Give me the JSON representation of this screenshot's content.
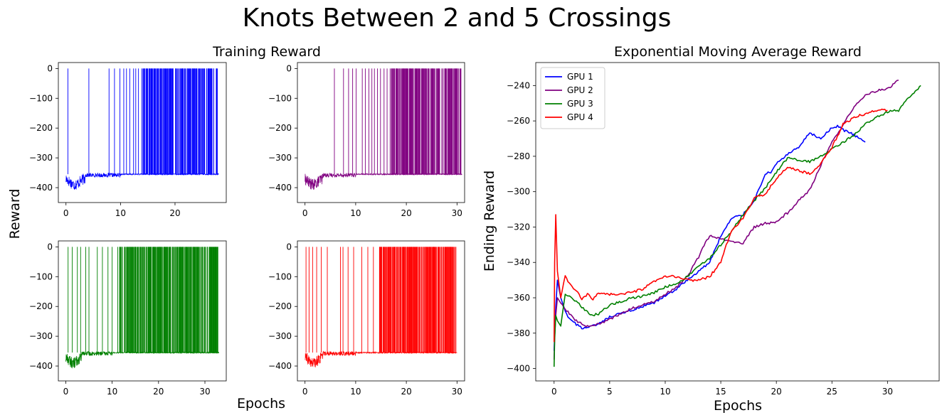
{
  "suptitle": "Knots Between 2 and 5 Crossings",
  "left_group": {
    "title": "Training Reward",
    "ylabel": "Reward",
    "xlabel": "Epochs"
  },
  "chart_data": [
    {
      "type": "line",
      "panel": "training-reward-gpu1",
      "color": "#0000ff",
      "xlim": [
        -1.4,
        29.4
      ],
      "ylim": [
        -450,
        20
      ],
      "xticks": [
        0,
        10,
        20
      ],
      "yticks": [
        0,
        -100,
        -200,
        -300,
        -400
      ],
      "x_max": 28,
      "baseline": -355,
      "spikes_x": [
        0.35,
        4.2,
        7.9,
        8.9,
        9.9,
        10.6,
        11.1,
        11.7,
        12.4,
        12.8,
        13.3,
        13.9,
        14.4,
        14.8,
        15.3,
        15.7,
        16.1,
        16.6,
        17.0,
        17.4,
        17.9,
        18.3,
        18.8,
        19.2,
        19.6,
        20.1,
        20.5,
        21.0,
        21.4,
        21.8,
        22.3,
        22.7,
        23.2,
        23.6,
        24.0,
        24.5,
        24.9,
        25.4,
        25.8,
        26.2,
        26.7,
        27.1,
        27.6
      ],
      "dense_from": 14.0
    },
    {
      "type": "line",
      "panel": "training-reward-gpu2",
      "color": "#800080",
      "xlim": [
        -1.5,
        31.5
      ],
      "ylim": [
        -450,
        20
      ],
      "xticks": [
        0,
        10,
        20,
        30
      ],
      "yticks": [
        0,
        -100,
        -200,
        -300,
        -400
      ],
      "x_max": 31,
      "baseline": -355,
      "spikes_x": [
        5.8,
        7.6,
        8.6,
        9.4,
        10.1,
        11.3,
        11.9,
        12.6,
        13.2,
        13.7,
        14.3,
        14.9,
        15.6,
        16.2,
        16.8,
        17.5,
        18.1,
        18.7,
        19.4,
        20.0,
        20.7,
        21.3,
        21.9,
        22.5,
        23.2,
        23.8,
        24.4,
        25.1,
        25.7,
        26.3,
        27.0,
        27.6,
        28.2,
        28.9,
        29.5,
        30.1,
        30.7
      ],
      "dense_from": 17.0
    },
    {
      "type": "line",
      "panel": "training-reward-gpu3",
      "color": "#008000",
      "xlim": [
        -1.6,
        34.6
      ],
      "ylim": [
        -450,
        20
      ],
      "xticks": [
        0,
        10,
        20,
        30
      ],
      "yticks": [
        0,
        -100,
        -200,
        -300,
        -400
      ],
      "x_max": 33,
      "baseline": -355,
      "spikes_x": [
        0.5,
        1.4,
        2.5,
        3.2,
        4.3,
        5.0,
        6.8,
        7.9,
        9.1,
        10.0,
        11.2,
        11.6,
        12.1,
        12.7,
        13.3,
        13.8,
        14.4,
        15.0,
        15.6,
        16.1,
        16.7,
        17.3,
        17.9,
        18.4,
        19.0,
        19.6,
        20.2,
        20.7,
        21.3,
        21.9,
        22.5,
        23.0,
        23.6,
        24.2,
        24.8,
        25.3,
        25.9,
        26.5,
        27.1,
        27.6,
        28.2,
        28.8,
        29.4,
        29.9,
        30.5,
        31.1,
        31.7,
        32.3,
        32.8
      ],
      "dense_from": 11.5
    },
    {
      "type": "line",
      "panel": "training-reward-gpu4",
      "color": "#ff0000",
      "xlim": [
        -1.5,
        31.5
      ],
      "ylim": [
        -450,
        20
      ],
      "xticks": [
        0,
        10,
        20,
        30
      ],
      "yticks": [
        0,
        -100,
        -200,
        -300,
        -400
      ],
      "x_max": 30,
      "baseline": -355,
      "spikes_x": [
        0.2,
        0.8,
        1.5,
        2.3,
        3.2,
        4.4,
        7.0,
        7.5,
        8.5,
        9.6,
        11.2,
        12.4,
        13.5,
        14.7,
        15.0,
        15.4,
        15.8,
        16.2,
        16.6,
        17.0,
        17.4,
        17.8,
        18.2,
        18.6,
        19.0,
        19.4,
        19.8,
        20.2,
        20.6,
        21.0,
        21.4,
        21.8,
        22.2,
        22.6,
        23.0,
        23.4,
        23.8,
        24.2,
        24.6,
        25.0,
        25.4,
        25.8,
        26.2,
        26.6,
        27.0,
        27.4,
        27.8,
        28.2,
        28.6,
        29.0,
        29.4,
        29.8
      ],
      "dense_from": 14.7
    },
    {
      "type": "line",
      "panel": "exponential-moving-average",
      "title": "Exponential Moving Average Reward",
      "xlabel": "Epochs",
      "ylabel": "Ending Reward",
      "xlim": [
        -1.65,
        34.65
      ],
      "ylim": [
        -407,
        -227
      ],
      "xticks": [
        0,
        5,
        10,
        15,
        20,
        25,
        30
      ],
      "yticks": [
        -240,
        -260,
        -280,
        -300,
        -320,
        -340,
        -360,
        -380,
        -400
      ],
      "legend": "top-left",
      "series": [
        {
          "name": "GPU 1",
          "color": "#0000ff",
          "x": [
            0,
            0.05,
            0.15,
            0.3,
            0.6,
            1.0,
            1.5,
            2.0,
            2.5,
            3.0,
            3.5,
            4.0,
            5,
            6,
            7,
            8,
            9,
            10,
            11,
            12,
            13,
            14,
            15,
            16,
            17,
            18,
            19,
            19.5,
            20,
            21,
            22,
            23,
            24,
            25,
            25.5,
            26,
            27,
            28
          ],
          "y": [
            -390,
            -380,
            -365,
            -350,
            -360,
            -368,
            -373,
            -375,
            -377,
            -377,
            -376,
            -375,
            -371,
            -369,
            -367,
            -365,
            -363,
            -359,
            -355,
            -350,
            -345,
            -340,
            -325,
            -315,
            -313,
            -305,
            -290,
            -289,
            -284,
            -279,
            -275,
            -267,
            -270,
            -264,
            -263,
            -265,
            -268,
            -272
          ]
        },
        {
          "name": "GPU 2",
          "color": "#800080",
          "x": [
            0,
            0.05,
            0.15,
            0.3,
            0.6,
            1.0,
            1.5,
            2.0,
            2.5,
            3.0,
            3.5,
            4.0,
            5,
            6,
            7,
            8,
            9,
            10,
            11,
            12,
            13,
            13.5,
            14,
            15,
            16,
            17,
            18,
            19,
            20,
            21,
            22,
            23,
            24,
            25,
            26,
            27,
            28,
            29,
            30,
            31
          ],
          "y": [
            -395,
            -382,
            -370,
            -360,
            -363,
            -366,
            -370,
            -373,
            -375,
            -376,
            -376,
            -375,
            -372,
            -369,
            -366,
            -364,
            -362,
            -358,
            -354,
            -348,
            -337,
            -330,
            -325,
            -327,
            -328,
            -329,
            -320,
            -318,
            -317,
            -312,
            -305,
            -299,
            -285,
            -272,
            -262,
            -252,
            -245,
            -243,
            -242,
            -237
          ]
        },
        {
          "name": "GPU 3",
          "color": "#008000",
          "x": [
            0,
            0.05,
            0.15,
            0.3,
            0.6,
            1.0,
            1.5,
            2.0,
            2.5,
            3.0,
            3.5,
            4.0,
            5,
            6,
            7,
            8,
            9,
            10,
            11,
            12,
            13,
            14,
            15,
            16,
            17,
            18,
            19,
            20,
            21,
            22,
            23,
            24,
            25,
            26,
            27,
            28,
            29,
            30,
            31,
            32,
            33
          ],
          "y": [
            -399,
            -384,
            -370,
            -373,
            -376,
            -358,
            -360,
            -362,
            -365,
            -368,
            -370,
            -369,
            -364,
            -362,
            -360,
            -359,
            -357,
            -354,
            -352,
            -348,
            -342,
            -338,
            -330,
            -322,
            -313,
            -305,
            -298,
            -289,
            -281,
            -282,
            -283,
            -280,
            -276,
            -272,
            -268,
            -262,
            -258,
            -255,
            -254,
            -246,
            -240
          ]
        },
        {
          "name": "GPU 4",
          "color": "#ff0000",
          "x": [
            0,
            0.05,
            0.15,
            0.3,
            0.6,
            1.0,
            1.5,
            2.0,
            2.5,
            3.0,
            3.5,
            4.0,
            5,
            6,
            7,
            8,
            9,
            10,
            11,
            12,
            13,
            14,
            15,
            15.5,
            16,
            17,
            18,
            19,
            20,
            21,
            22,
            23,
            24,
            25,
            26,
            27,
            28,
            29,
            30
          ],
          "y": [
            -385,
            -340,
            -313,
            -345,
            -360,
            -348,
            -353,
            -356,
            -361,
            -358,
            -361,
            -357,
            -358,
            -358,
            -357,
            -355,
            -351,
            -348,
            -348,
            -350,
            -350,
            -348,
            -340,
            -330,
            -322,
            -315,
            -304,
            -301,
            -293,
            -286,
            -288,
            -290,
            -284,
            -275,
            -262,
            -258,
            -256,
            -254,
            -254
          ]
        }
      ]
    }
  ]
}
